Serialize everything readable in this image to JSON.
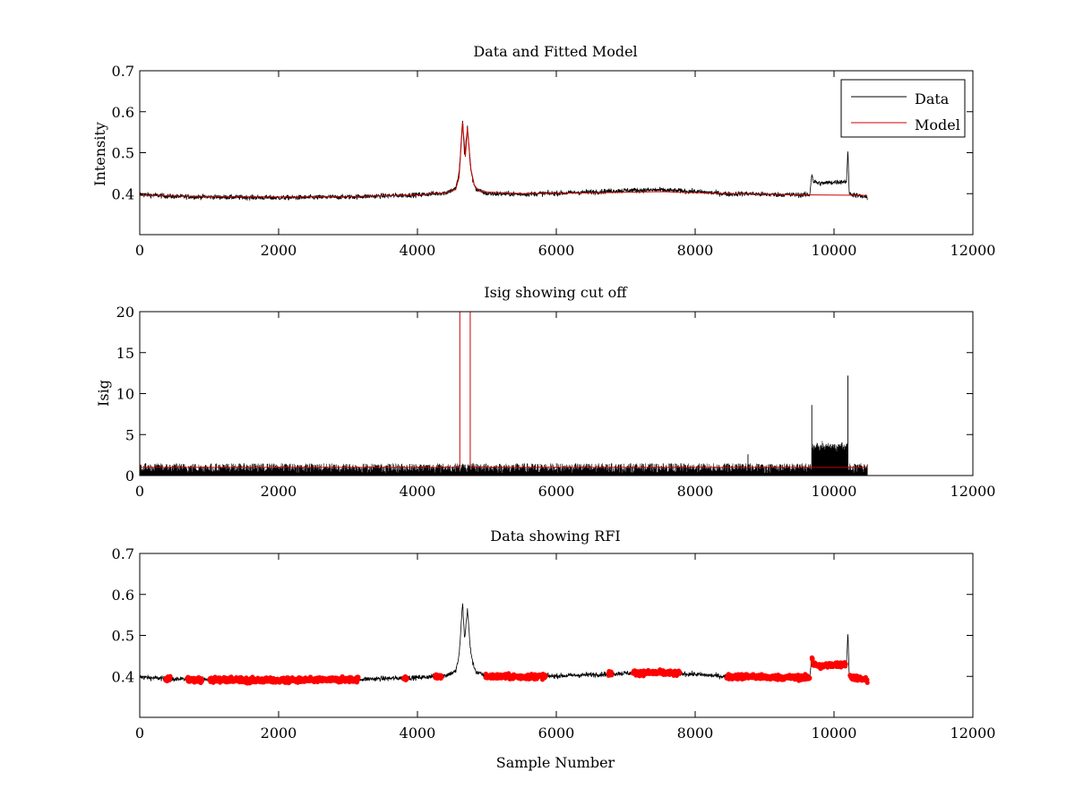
{
  "chart_data": [
    {
      "type": "line",
      "title": "Data and Fitted Model",
      "xlabel": "",
      "ylabel": "Intensity",
      "xlim": [
        0,
        12000
      ],
      "ylim": [
        0.3,
        0.7
      ],
      "xticks": [
        0,
        2000,
        4000,
        6000,
        8000,
        10000,
        12000
      ],
      "yticks": [
        0.4,
        0.5,
        0.6,
        0.7
      ],
      "ytick_labels": [
        "0.4",
        "0.5",
        "0.6",
        "0.7"
      ],
      "grid": false,
      "legend": {
        "placement": "top-right",
        "entries": [
          {
            "name": "Data",
            "color": "#000000"
          },
          {
            "name": "Model",
            "color": "#cc0000"
          }
        ]
      },
      "series": [
        {
          "name": "Data",
          "color": "#000000",
          "noise": 0.006,
          "x_max": 10480,
          "points": [
            [
              0,
              0.398
            ],
            [
              500,
              0.393
            ],
            [
              1000,
              0.392
            ],
            [
              2000,
              0.39
            ],
            [
              3000,
              0.392
            ],
            [
              4000,
              0.397
            ],
            [
              4400,
              0.402
            ],
            [
              4550,
              0.412
            ],
            [
              4600,
              0.45
            ],
            [
              4650,
              0.58
            ],
            [
              4680,
              0.49
            ],
            [
              4720,
              0.565
            ],
            [
              4760,
              0.47
            ],
            [
              4800,
              0.43
            ],
            [
              4850,
              0.41
            ],
            [
              5000,
              0.4
            ],
            [
              5500,
              0.399
            ],
            [
              6000,
              0.401
            ],
            [
              6500,
              0.404
            ],
            [
              7000,
              0.408
            ],
            [
              7500,
              0.409
            ],
            [
              8000,
              0.405
            ],
            [
              8500,
              0.399
            ],
            [
              8750,
              0.4
            ],
            [
              9000,
              0.398
            ],
            [
              9650,
              0.397
            ],
            [
              9680,
              0.45
            ],
            [
              9700,
              0.43
            ],
            [
              9800,
              0.425
            ],
            [
              10000,
              0.428
            ],
            [
              10180,
              0.43
            ],
            [
              10200,
              0.505
            ],
            [
              10220,
              0.4
            ],
            [
              10480,
              0.39
            ]
          ]
        },
        {
          "name": "Model",
          "color": "#cc0000",
          "x_max": 10480,
          "points": [
            [
              0,
              0.396
            ],
            [
              1000,
              0.393
            ],
            [
              2000,
              0.392
            ],
            [
              3000,
              0.393
            ],
            [
              4000,
              0.397
            ],
            [
              4400,
              0.402
            ],
            [
              4550,
              0.41
            ],
            [
              4600,
              0.44
            ],
            [
              4650,
              0.575
            ],
            [
              4690,
              0.49
            ],
            [
              4720,
              0.56
            ],
            [
              4770,
              0.46
            ],
            [
              4820,
              0.42
            ],
            [
              4900,
              0.405
            ],
            [
              5500,
              0.4
            ],
            [
              6500,
              0.402
            ],
            [
              7500,
              0.405
            ],
            [
              8500,
              0.4
            ],
            [
              9680,
              0.397
            ],
            [
              10480,
              0.396
            ]
          ]
        }
      ]
    },
    {
      "type": "line",
      "title": "Isig showing cut off",
      "xlabel": "",
      "ylabel": "Isig",
      "xlim": [
        0,
        12000
      ],
      "ylim": [
        0,
        20
      ],
      "xticks": [
        0,
        2000,
        4000,
        6000,
        8000,
        10000,
        12000
      ],
      "yticks": [
        0,
        5,
        10,
        15,
        20
      ],
      "ytick_labels": [
        "0",
        "5",
        "10",
        "15",
        "20"
      ],
      "grid": false,
      "series": [
        {
          "color": "#000000",
          "x_max": 10480,
          "baseline": 0.3,
          "noise_amp": 1.2,
          "spikes": [
            [
              8760,
              2.6
            ],
            [
              9680,
              8.6
            ],
            [
              10200,
              12.2
            ]
          ],
          "plateau": {
            "from": 9680,
            "to": 10200,
            "level": 3.5,
            "amp": 1.0
          }
        },
        {
          "color": "#cc0000",
          "cutoff_level": 1.0,
          "x_max": 10480,
          "points": [
            [
              0,
              1.0
            ],
            [
              4610,
              1.0
            ],
            [
              4610,
              20
            ],
            [
              4760,
              20
            ],
            [
              4760,
              1.0
            ],
            [
              9680,
              1.0
            ],
            [
              10200,
              1.0
            ],
            [
              10480,
              1.0
            ]
          ]
        }
      ]
    },
    {
      "type": "scatter",
      "title": "Data showing RFI",
      "xlabel": "Sample Number",
      "ylabel": "",
      "xlim": [
        0,
        12000
      ],
      "ylim": [
        0.3,
        0.7
      ],
      "xticks": [
        0,
        2000,
        4000,
        6000,
        8000,
        10000,
        12000
      ],
      "yticks": [
        0.4,
        0.5,
        0.6,
        0.7
      ],
      "ytick_labels": [
        "0.4",
        "0.5",
        "0.6",
        "0.7"
      ],
      "grid": false,
      "series": [
        {
          "color": "#000000",
          "mode": "line",
          "same_as": "Data"
        },
        {
          "color": "#ff0000",
          "mode": "markers",
          "flagged_ranges": [
            [
              370,
              440
            ],
            [
              680,
              900
            ],
            [
              1000,
              3150
            ],
            [
              3800,
              3850
            ],
            [
              4250,
              4350
            ],
            [
              4980,
              5850
            ],
            [
              6750,
              6800
            ],
            [
              7100,
              7780
            ],
            [
              8450,
              9650
            ],
            [
              9680,
              10170
            ],
            [
              10230,
              10480
            ]
          ]
        }
      ]
    }
  ]
}
